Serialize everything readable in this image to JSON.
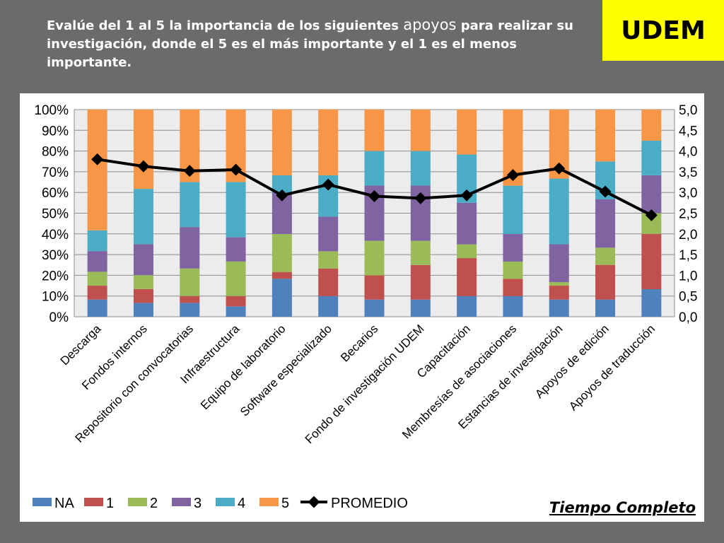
{
  "title": {
    "part1": "Evalúe del 1 al 5 la importancia de los siguientes ",
    "highlight": "apoyos",
    "part2": " para realizar su investigación, donde el 5 es el más importante y el 1 es el menos importante."
  },
  "logo_text": "UDEM",
  "panel_label": "Tiempo Completo",
  "chart_data": {
    "type": "bar",
    "stacked": true,
    "stack_mode": "percent",
    "categories": [
      "Descarga",
      "Fondos internos",
      "Repositorio con convocatorias",
      "Infraestructura",
      "Equipo de laboratorio",
      "Software especializado",
      "Becarios",
      "Fondo de investigación UDEM",
      "Capacitación",
      "Membresías de asociaciones",
      "Estancias de investigación",
      "Apoyos de edición",
      "Apoyos de traducción"
    ],
    "series": [
      {
        "name": "NA",
        "color": "#4f81bd",
        "values": [
          8.3,
          6.7,
          6.7,
          5.0,
          18.3,
          10.0,
          8.3,
          8.3,
          10.0,
          10.0,
          8.3,
          8.3,
          13.3
        ]
      },
      {
        "name": "1",
        "color": "#c0504d",
        "values": [
          6.7,
          6.7,
          3.3,
          5.0,
          3.3,
          13.3,
          11.7,
          16.7,
          18.3,
          8.3,
          6.7,
          16.7,
          26.7
        ]
      },
      {
        "name": "2",
        "color": "#9bbb59",
        "values": [
          6.7,
          6.7,
          13.3,
          16.7,
          18.3,
          8.3,
          16.7,
          11.7,
          6.7,
          8.3,
          1.7,
          8.3,
          10.0
        ]
      },
      {
        "name": "3",
        "color": "#8064a2",
        "values": [
          10.0,
          15.0,
          20.0,
          11.7,
          20.0,
          16.7,
          26.7,
          26.7,
          20.0,
          13.3,
          18.3,
          23.3,
          18.3
        ]
      },
      {
        "name": "4",
        "color": "#4bacc6",
        "values": [
          10.0,
          26.7,
          21.7,
          26.7,
          8.3,
          20.0,
          16.7,
          16.7,
          23.3,
          23.3,
          31.7,
          18.3,
          16.7
        ]
      },
      {
        "name": "5",
        "color": "#f79646",
        "values": [
          58.3,
          38.3,
          35.0,
          35.0,
          31.7,
          31.7,
          20.0,
          20.0,
          21.7,
          36.7,
          33.3,
          25.0,
          15.0
        ]
      }
    ],
    "line_series": {
      "name": "PROMEDIO",
      "color": "#000000",
      "axis": "secondary",
      "values": [
        3.8,
        3.63,
        3.52,
        3.55,
        2.93,
        3.19,
        2.91,
        2.86,
        2.93,
        3.42,
        3.58,
        3.02,
        2.45
      ]
    },
    "ylim": [
      0,
      100
    ],
    "y_ticks": [
      "0%",
      "10%",
      "20%",
      "30%",
      "40%",
      "50%",
      "60%",
      "70%",
      "80%",
      "90%",
      "100%"
    ],
    "y2lim": [
      0,
      5
    ],
    "y2_ticks": [
      "0,0",
      "0,5",
      "1,0",
      "1,5",
      "2,0",
      "2,5",
      "3,0",
      "3,5",
      "4,0",
      "4,5",
      "5,0"
    ],
    "grid": true,
    "legend_position": "bottom-left"
  }
}
